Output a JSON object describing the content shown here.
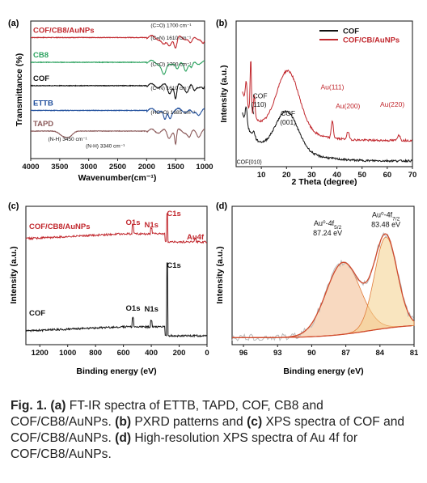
{
  "colors": {
    "red": "#c1272d",
    "green": "#2ca25f",
    "black": "#111111",
    "blue": "#1f4e9c",
    "brown": "#8b5a5a",
    "gray": "#b9b9b9",
    "orange": "#e07b39",
    "peak_fill_1": "#f2b98c",
    "peak_fill_2": "#f4d08a"
  },
  "caption": {
    "fig": "Fig. 1.",
    "a_tag": "(a)",
    "a_text": " FT-IR spectra of ETTB, TAPD, COF, CB8 and COF/CB8/AuNPs. ",
    "b_tag": "(b)",
    "b_text": " PXRD patterns and ",
    "c_tag": "(c)",
    "c_text": " XPS spectra of COF and COF/CB8/AuNPs. ",
    "d_tag": "(d)",
    "d_text": " High-resolution XPS spectra of Au 4f for COF/CB8/AuNPs."
  },
  "chart_data": [
    {
      "panel": "(a)",
      "type": "line",
      "xlabel": "Wavenumber(cm⁻¹)",
      "ylabel": "Transmittance (%)",
      "xlim": [
        4000,
        1000
      ],
      "x_reversed": true,
      "xticks": [
        4000,
        3500,
        3000,
        2500,
        2000,
        1500,
        1000
      ],
      "series": [
        {
          "name": "COF/CB8/AuNPs",
          "color": "#c1272d",
          "baseline": 0.88,
          "dips": [
            [
              1700,
              0.06,
              40
            ],
            [
              1610,
              0.05,
              30
            ],
            [
              1500,
              0.08,
              25
            ],
            [
              1240,
              0.05,
              30
            ],
            [
              1020,
              0.05,
              30
            ]
          ]
        },
        {
          "name": "CB8",
          "color": "#2ca25f",
          "baseline": 0.7,
          "dips": [
            [
              1700,
              0.1,
              40
            ],
            [
              1470,
              0.06,
              30
            ],
            [
              1320,
              0.05,
              30
            ],
            [
              1230,
              0.05,
              25
            ],
            [
              960,
              0.04,
              20
            ]
          ]
        },
        {
          "name": "COF",
          "color": "#111111",
          "baseline": 0.53,
          "dips": [
            [
              1610,
              0.05,
              30
            ],
            [
              1500,
              0.1,
              20
            ],
            [
              1300,
              0.04,
              30
            ],
            [
              1180,
              0.04,
              25
            ],
            [
              1020,
              0.03,
              20
            ]
          ]
        },
        {
          "name": "ETTB",
          "color": "#1f4e9c",
          "baseline": 0.35,
          "dips": [
            [
              1685,
              0.08,
              25
            ],
            [
              1600,
              0.05,
              25
            ],
            [
              1200,
              0.03,
              30
            ],
            [
              1100,
              0.02,
              30
            ]
          ]
        },
        {
          "name": "TAPD",
          "color": "#8b5a5a",
          "baseline": 0.2,
          "dips": [
            [
              3450,
              0.03,
              60
            ],
            [
              3340,
              0.04,
              60
            ],
            [
              1620,
              0.05,
              30
            ],
            [
              1500,
              0.1,
              15
            ],
            [
              1260,
              0.05,
              30
            ],
            [
              1100,
              0.03,
              30
            ]
          ]
        }
      ],
      "annotations": [
        {
          "text": "(C=O) 1700 cm⁻¹",
          "x": 1930,
          "y": 0.955
        },
        {
          "text": "(C=N) 1610 cm⁻¹",
          "x": 1930,
          "y": 0.865
        },
        {
          "text": "(C=O) 1700 cm⁻¹",
          "x": 1930,
          "y": 0.675
        },
        {
          "text": "(C=N) 1610 cm⁻¹",
          "x": 1930,
          "y": 0.5
        },
        {
          "text": "(HC=O) 1685 cm⁻¹",
          "x": 1930,
          "y": 0.325
        },
        {
          "text": "(N-H) 3450 cm⁻¹",
          "x": 3700,
          "y": 0.13
        },
        {
          "text": "(N-H) 3340 cm⁻¹",
          "x": 3050,
          "y": 0.08
        }
      ]
    },
    {
      "panel": "(b)",
      "type": "line",
      "xlabel": "2 Theta (degree)",
      "ylabel": "Intensity (a.u.)",
      "xlim": [
        0,
        70
      ],
      "xticks": [
        10,
        20,
        30,
        40,
        50,
        60,
        70
      ],
      "legend": "top-right",
      "series": [
        {
          "name": "COF",
          "color": "#111111",
          "offset": 0.04,
          "scale": 0.35,
          "peaks": [
            [
              4.0,
              0.12,
              0.35
            ],
            [
              7.0,
              0.04,
              0.5
            ],
            [
              20.0,
              0.28,
              4.5
            ]
          ]
        },
        {
          "name": "COF/CB/AuNPs",
          "color": "#c1272d",
          "offset": 0.18,
          "scale": 0.35,
          "peaks": [
            [
              4.0,
              0.15,
              0.35
            ],
            [
              5.8,
              0.38,
              0.25
            ],
            [
              7.2,
              0.16,
              0.3
            ],
            [
              20.5,
              0.42,
              4.5
            ],
            [
              38.2,
              0.12,
              0.4
            ],
            [
              44.4,
              0.05,
              0.5
            ],
            [
              64.6,
              0.04,
              0.5
            ]
          ]
        }
      ],
      "labels": [
        {
          "text": "Au(111)",
          "x": 38.2
        },
        {
          "text": "Au(200)",
          "x": 44.4
        },
        {
          "text": "Au(220)",
          "x": 64.6
        },
        {
          "text": "COF",
          "x": 7.0
        },
        {
          "text": "(110)",
          "x": 7.0
        },
        {
          "text": "COF",
          "x": 20.0
        },
        {
          "text": "(001)",
          "x": 20.0
        },
        {
          "text": "COF(010)",
          "x": 4.0
        }
      ]
    },
    {
      "panel": "(c)",
      "type": "line",
      "xlabel": "Binding energy (eV)",
      "ylabel": "Intensity (a.u.)",
      "xlim": [
        1300,
        0
      ],
      "x_reversed": true,
      "xticks": [
        1200,
        1000,
        800,
        600,
        400,
        200,
        0
      ],
      "series": [
        {
          "name": "COF/CB8/AuNPs",
          "color": "#c1272d"
        },
        {
          "name": "COF",
          "color": "#111111"
        }
      ],
      "labels": [
        {
          "text": "O1s",
          "x": 531
        },
        {
          "text": "N1s",
          "x": 399
        },
        {
          "text": "C1s",
          "x": 284
        },
        {
          "text": "Au4f",
          "x": 84
        },
        {
          "text": "O1s",
          "x": 531
        },
        {
          "text": "N1s",
          "x": 399
        },
        {
          "text": "C1s",
          "x": 284
        }
      ]
    },
    {
      "panel": "(d)",
      "type": "area",
      "xlabel": "Binding energy (eV)",
      "ylabel": "Intensity (a.u.)",
      "xlim": [
        97,
        81
      ],
      "x_reversed": true,
      "xticks": [
        96,
        93,
        90,
        87,
        84,
        81
      ],
      "peaks": [
        {
          "label": "Au⁰-4f",
          "sub": "5/2",
          "value": "87.24 eV",
          "center": 87.24,
          "height": 0.52,
          "width": 1.5
        },
        {
          "label": "Au⁰-4f",
          "sub": "7/2",
          "value": "83.48 eV",
          "center": 83.48,
          "height": 0.66,
          "width": 1.0
        }
      ]
    }
  ]
}
